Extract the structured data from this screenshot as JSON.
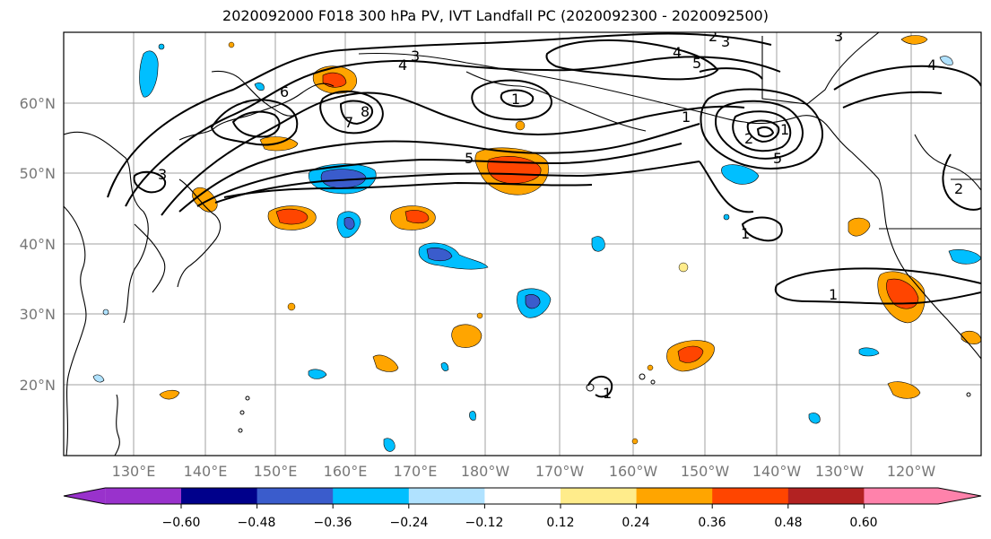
{
  "title": "2020092000 F018 300 hPa PV, IVT Landfall PC (2020092300 - 2020092500)",
  "lat_labels": [
    "60°N",
    "50°N",
    "40°N",
    "30°N",
    "20°N"
  ],
  "lon_labels": [
    "130°E",
    "140°E",
    "150°E",
    "160°E",
    "170°E",
    "180°W",
    "170°W",
    "160°W",
    "150°W",
    "140°W",
    "130°W",
    "120°W"
  ],
  "colorbar": {
    "tick_labels": [
      "−0.60",
      "−0.48",
      "−0.36",
      "−0.24",
      "−0.12",
      "0.12",
      "0.24",
      "0.36",
      "0.48",
      "0.60"
    ],
    "colors": [
      "#9932cc",
      "#00008b",
      "#3a5ccc",
      "#00bfff",
      "#b0e2ff",
      "#ffffff",
      "#ffec8b",
      "#ffa500",
      "#ff4500",
      "#b22222",
      "#ff82ab"
    ]
  },
  "contour_labels": [
    "3",
    "4",
    "3",
    "4",
    "5",
    "2",
    "3",
    "4",
    "5",
    "6",
    "7",
    "8",
    "1",
    "5",
    "1",
    "2",
    "3",
    "1",
    "1",
    "1",
    "2",
    "1"
  ]
}
